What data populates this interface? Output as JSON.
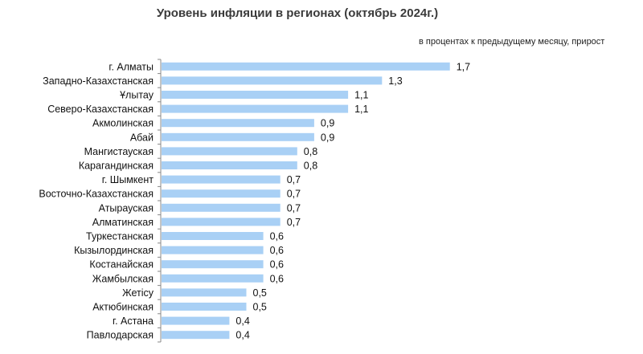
{
  "chart_data": {
    "type": "bar",
    "orientation": "horizontal",
    "title": "Уровень инфляции в регионах (октябрь 2024г.)",
    "subtitle": "в процентах к предыдущему месяцу, прирост",
    "categories": [
      "г. Алматы",
      "Западно-Казахстанская",
      "Ұлытау",
      "Северо-Казахстанская",
      "Акмолинская",
      "Абай",
      "Мангистауская",
      "Карагандинская",
      "г. Шымкент",
      "Восточно-Казахстанская",
      "Атырауская",
      "Алматинская",
      "Туркестанская",
      "Кызылординская",
      "Костанайская",
      "Жамбылская",
      "Жетісу",
      "Актюбинская",
      "г. Астана",
      "Павлодарская"
    ],
    "values": [
      1.7,
      1.3,
      1.1,
      1.1,
      0.9,
      0.9,
      0.8,
      0.8,
      0.7,
      0.7,
      0.7,
      0.7,
      0.6,
      0.6,
      0.6,
      0.6,
      0.5,
      0.5,
      0.4,
      0.4
    ],
    "value_labels": [
      "1,7",
      "1,3",
      "1,1",
      "1,1",
      "0,9",
      "0,9",
      "0,8",
      "0,8",
      "0,7",
      "0,7",
      "0,7",
      "0,7",
      "0,6",
      "0,6",
      "0,6",
      "0,6",
      "0,5",
      "0,5",
      "0,4",
      "0,4"
    ],
    "bar_color": "#a9d0f5",
    "axis_color": "#888888",
    "grid": false,
    "legend": "none"
  }
}
